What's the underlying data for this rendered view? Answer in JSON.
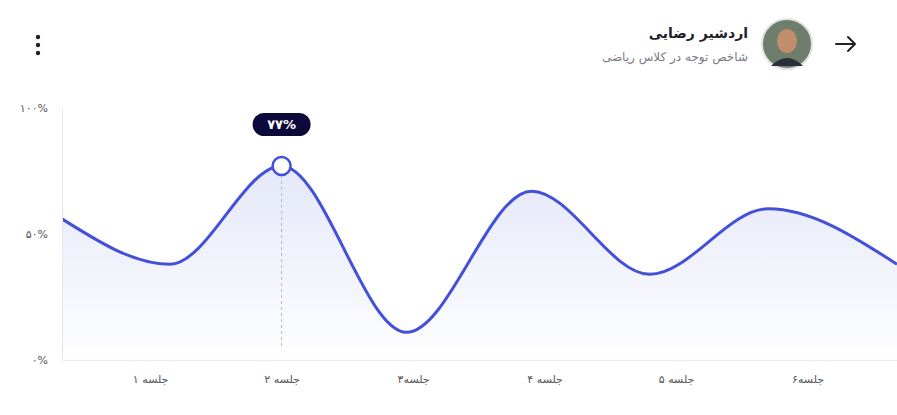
{
  "chart_data": {
    "type": "line",
    "title": "اردشیر رضایی",
    "subtitle": "شاخص توجه در کلاس ریاضی",
    "x": [
      0.33,
      1.15,
      2,
      2.95,
      3.9,
      4.8,
      5.7,
      6.68
    ],
    "series": [
      {
        "color": "#4350d8",
        "values": [
          56,
          38,
          77,
          11,
          67,
          34,
          60,
          38
        ]
      }
    ],
    "xlim": [
      0.33,
      6.68
    ],
    "xticks": [
      {
        "value": 1,
        "label": "جلسه ۱"
      },
      {
        "value": 2,
        "label": "جلسه ۲"
      },
      {
        "value": 3,
        "label": "جلسه۳"
      },
      {
        "value": 4,
        "label": "جلسه ۴"
      },
      {
        "value": 5,
        "label": "جلسه ۵"
      },
      {
        "value": 6,
        "label": "جلسه۶"
      }
    ],
    "ylim": [
      0,
      100
    ],
    "yticks": [
      {
        "value": 0,
        "label": "۰%"
      },
      {
        "value": 50,
        "label": "۵۰%"
      },
      {
        "value": 100,
        "label": "۱۰۰%"
      }
    ],
    "annotation": {
      "x": 2,
      "value": 77,
      "label": "۷۷%"
    }
  }
}
